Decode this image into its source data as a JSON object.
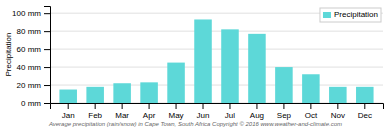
{
  "chart_data": {
    "type": "bar",
    "categories": [
      "Jan",
      "Feb",
      "Mar",
      "Apr",
      "May",
      "Jun",
      "Jul",
      "Aug",
      "Sep",
      "Oct",
      "Nov",
      "Dec"
    ],
    "series": [
      {
        "name": "Precipitation",
        "color": "#5dd8d8",
        "values": [
          15,
          18,
          22,
          23,
          45,
          93,
          82,
          77,
          40,
          32,
          18,
          18
        ]
      }
    ],
    "ylabel": "Precipitation",
    "ylim": [
      0,
      108
    ],
    "yticks": [
      {
        "value": 0,
        "label": "0 mm"
      },
      {
        "value": 20,
        "label": "20 mm"
      },
      {
        "value": 40,
        "label": "40 mm"
      },
      {
        "value": 60,
        "label": "60 mm"
      },
      {
        "value": 80,
        "label": "80 mm"
      },
      {
        "value": 100,
        "label": "100 mm"
      }
    ],
    "grid": true,
    "legend": "upper right",
    "annotations": [
      "Average precipitation (rain/snow) in Cape Town, South Africa   Copyright © 2016 www.weather-and-climate.com"
    ]
  }
}
